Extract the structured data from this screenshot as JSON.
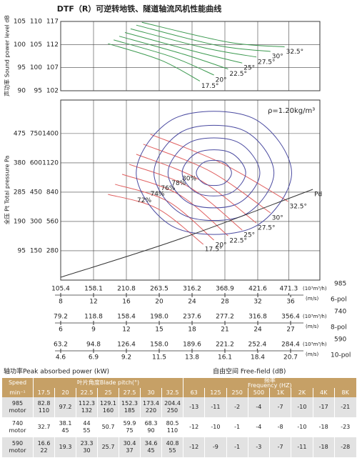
{
  "chart_data": [
    {
      "type": "line",
      "title": "DTF（R）可逆转地铁、隧道轴流风机性能曲线",
      "ylabel": "声功率 Sound power level dB",
      "ylim": [
        102,
        117
      ],
      "yticks": [
        102,
        107,
        112,
        117
      ],
      "grid": true,
      "y_scales": [
        {
          "ylim": [
            90,
            105
          ],
          "yticks": [
            90,
            95,
            100,
            105
          ]
        },
        {
          "ylim": [
            95,
            110
          ],
          "yticks": [
            95,
            100,
            105,
            110
          ]
        }
      ],
      "series": [
        {
          "name": "17.5°",
          "color": "#3c9a50",
          "x": [
            181.3,
            266.3,
            328.7
          ],
          "values": [
            112.2,
            108.6,
            104.1
          ]
        },
        {
          "name": "20°",
          "color": "#3c9a50",
          "x": [
            190.4,
            284.5,
            351.3
          ],
          "values": [
            113.0,
            109.3,
            105.4
          ]
        },
        {
          "name": "22.5°",
          "color": "#3c9a50",
          "x": [
            199.4,
            302.6,
            374.0
          ],
          "values": [
            113.8,
            109.9,
            106.7
          ]
        },
        {
          "name": "25°",
          "color": "#3c9a50",
          "x": [
            208.5,
            320.7,
            396.7
          ],
          "values": [
            114.6,
            110.5,
            108.0
          ]
        },
        {
          "name": "27.5°",
          "color": "#3c9a50",
          "x": [
            217.6,
            338.9,
            419.3
          ],
          "values": [
            115.4,
            111.2,
            109.3
          ]
        },
        {
          "name": "30°",
          "color": "#3c9a50",
          "x": [
            226.7,
            357.0,
            442.0
          ],
          "values": [
            116.2,
            111.8,
            110.5
          ]
        },
        {
          "name": "32.5°",
          "color": "#3c9a50",
          "x": [
            235.7,
            375.1,
            464.7
          ],
          "values": [
            116.8,
            112.5,
            111.5
          ]
        }
      ]
    },
    {
      "type": "line",
      "ylabel": "全压 Pt Total pressure Pa",
      "annotation": "ρ=1.20kg/m³",
      "ylim": [
        0,
        1720
      ],
      "yticks": [
        280,
        560,
        840,
        1120,
        1400
      ],
      "grid": true,
      "y_scales": [
        {
          "ylim": [
            0,
            583.6
          ],
          "yticks": [
            95,
            190,
            285,
            380,
            475
          ]
        },
        {
          "ylim": [
            0,
            921.4
          ],
          "yticks": [
            150,
            300,
            450,
            600,
            750
          ]
        }
      ],
      "series": [
        {
          "name": "17.5°",
          "color": "#e06060",
          "x": [
            181.3,
            260.7,
            334.3
          ],
          "values": [
            819,
            683,
            341
          ]
        },
        {
          "name": "20°",
          "color": "#e06060",
          "x": [
            192.7,
            277.7,
            351.3
          ],
          "values": [
            915,
            751,
            382
          ]
        },
        {
          "name": "22.5°",
          "color": "#e06060",
          "x": [
            204.0,
            294.7,
            374.0
          ],
          "values": [
            1011,
            819,
            423
          ]
        },
        {
          "name": "25°",
          "color": "#e06060",
          "x": [
            215.3,
            311.7,
            396.7
          ],
          "values": [
            1106,
            888,
            478
          ]
        },
        {
          "name": "27.5°",
          "color": "#e06060",
          "x": [
            226.7,
            328.7,
            419.3
          ],
          "values": [
            1202,
            956,
            546
          ]
        },
        {
          "name": "30°",
          "color": "#e06060",
          "x": [
            238.0,
            345.7,
            442.0
          ],
          "values": [
            1298,
            1038,
            642
          ]
        },
        {
          "name": "32.5°",
          "color": "#e06060",
          "x": [
            249.3,
            362.7,
            470.3
          ],
          "values": [
            1393,
            1120,
            751
          ]
        },
        {
          "name": "80%",
          "color": "#4a4aa0",
          "closed": true,
          "x": [
            323.0,
            337.1,
            365.5,
            379.6,
            365.5,
            337.1
          ],
          "values": [
            1024,
            1131,
            1131,
            1024,
            917,
            917
          ]
        },
        {
          "name": "78%",
          "color": "#4a4aa0",
          "closed": true,
          "x": [
            300.3,
            325.8,
            376.8,
            402.3,
            376.8,
            325.8
          ],
          "values": [
            1024,
            1220,
            1220,
            1024,
            828,
            828
          ]
        },
        {
          "name": "76%",
          "color": "#4a4aa0",
          "closed": true,
          "x": [
            277.6,
            314.5,
            388.2,
            425.0,
            388.2,
            314.5
          ],
          "values": [
            1024,
            1321,
            1321,
            1024,
            727,
            727
          ]
        },
        {
          "name": "74%",
          "color": "#4a4aa0",
          "closed": true,
          "x": [
            255.0,
            303.2,
            399.5,
            447.6,
            399.5,
            303.2
          ],
          "values": [
            1024,
            1428,
            1428,
            1024,
            620,
            620
          ]
        },
        {
          "name": "72%",
          "color": "#4a4aa0",
          "closed": true,
          "x": [
            226.6,
            289.0,
            413.7,
            476.0,
            413.7,
            289.0
          ],
          "values": [
            1024,
            1547,
            1547,
            1024,
            501,
            501
          ]
        },
        {
          "name": "Pd",
          "color": "#333333",
          "x": [
            105.4,
            294.7,
            510.0
          ],
          "values": [
            27,
            389,
            867
          ]
        }
      ]
    }
  ],
  "flow_scales": [
    {
      "speed": 985,
      "poles": "6-pol",
      "flow_unit": "(10³m³/h)",
      "velocity_unit": "(m/s)",
      "xlim": [
        105.4,
        521.3
      ],
      "velocity_xlim": [
        8,
        39.56
      ],
      "flow": [
        105.4,
        158.1,
        210.8,
        263.5,
        316.2,
        368.9,
        421.6,
        471.3
      ],
      "velocity": [
        8,
        12,
        16,
        20,
        24,
        28,
        32,
        36
      ]
    },
    {
      "speed": 740,
      "poles": "8-pol",
      "flow_unit": "(10³m³/h)",
      "velocity_unit": "(m/s)",
      "xlim": [
        79.2,
        391.7
      ],
      "velocity_xlim": [
        6,
        29.67
      ],
      "flow": [
        79.2,
        118.8,
        158.4,
        {
          "value": 198,
          "label": "198.0"
        },
        237.6,
        277.2,
        316.8,
        356.4
      ],
      "velocity": [
        6,
        9,
        12,
        15,
        18,
        21,
        24,
        27
      ]
    },
    {
      "speed": 590,
      "poles": "10-pol",
      "flow_unit": "(10³m³/h)",
      "velocity_unit": "(m/s)",
      "xlim": [
        63.2,
        312.6
      ],
      "velocity_xlim": [
        4.6,
        22.75
      ],
      "flow": [
        63.2,
        94.8,
        126.4,
        {
          "value": 158,
          "label": "158.0"
        },
        189.6,
        221.2,
        252.4,
        284.4
      ],
      "velocity": [
        4.6,
        6.9,
        9.2,
        11.5,
        13.8,
        16.1,
        18.4,
        20.7
      ]
    }
  ],
  "table": {
    "power_label": "轴功率Peak absorbed power (kW)",
    "noise_label": "自由空间  Free-field  (dB)",
    "header": {
      "speed": "Speed",
      "speed_unit": "min⁻¹",
      "pitch_title": "叶片角度Blade pitch(°)",
      "freq_title": "频率",
      "freq_title_en": "Frequency (HZ)",
      "pitches": [
        17.5,
        20,
        22.5,
        25,
        27.5,
        30,
        32.5
      ],
      "frequencies": [
        63,
        125,
        250,
        500,
        "1K",
        "2K",
        "4K",
        "8K"
      ]
    },
    "rows": [
      {
        "speed": "985",
        "unit": "motor",
        "power": [
          [
            82.8,
            110
          ],
          [
            97.2
          ],
          [
            112.3,
            132
          ],
          [
            129.1,
            160
          ],
          [
            152.3,
            185
          ],
          [
            173.4,
            220
          ],
          [
            204.4,
            250
          ]
        ],
        "noise": [
          -13,
          -11,
          -2,
          -4,
          -7,
          -10,
          -17,
          -21
        ]
      },
      {
        "speed": "740",
        "unit": "motor",
        "power": [
          [
            32.7
          ],
          [
            38.1,
            45
          ],
          [
            44.0,
            55
          ],
          [
            50.7
          ],
          [
            59.9,
            75
          ],
          [
            68.3,
            90
          ],
          [
            80.5,
            110
          ]
        ],
        "noise": [
          -12,
          -10,
          -1,
          -4,
          -8,
          -10,
          -18,
          -23
        ]
      },
      {
        "speed": "590",
        "unit": "motor",
        "power": [
          [
            16.6,
            22
          ],
          [
            19.3
          ],
          [
            23.3,
            30
          ],
          [
            25.7
          ],
          [
            30.4,
            37
          ],
          [
            34.6,
            45
          ],
          [
            40.8,
            55
          ]
        ],
        "noise": [
          -12,
          -9,
          -1,
          -3,
          -7,
          -11,
          -18,
          -28
        ]
      }
    ]
  }
}
